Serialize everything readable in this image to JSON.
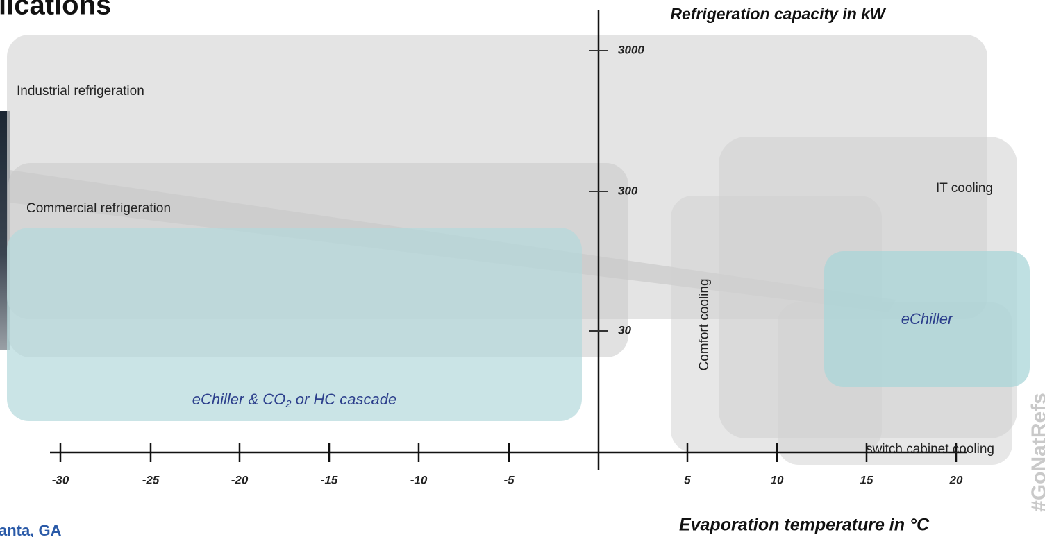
{
  "title": "lications",
  "footer": "anta, GA",
  "watermark": "#GoNatRefs",
  "y_axis": {
    "label": "Refrigeration capacity in kW",
    "ticks": [
      "3000",
      "300",
      "30"
    ]
  },
  "x_axis": {
    "label": "Evaporation temperature in °C",
    "ticks": [
      "-30",
      "-25",
      "-20",
      "-15",
      "-10",
      "-5",
      "5",
      "10",
      "15",
      "20"
    ]
  },
  "regions": [
    {
      "label": "Industrial refrigeration"
    },
    {
      "label": "Commercial refrigeration"
    },
    {
      "label": "IT cooling"
    },
    {
      "label": "Comfort cooling"
    },
    {
      "label": "switch cabinet cooling"
    },
    {
      "label": "eChiller"
    },
    {
      "label_parts": [
        "eChiller & CO",
        "2",
        " or HC cascade"
      ]
    }
  ]
}
